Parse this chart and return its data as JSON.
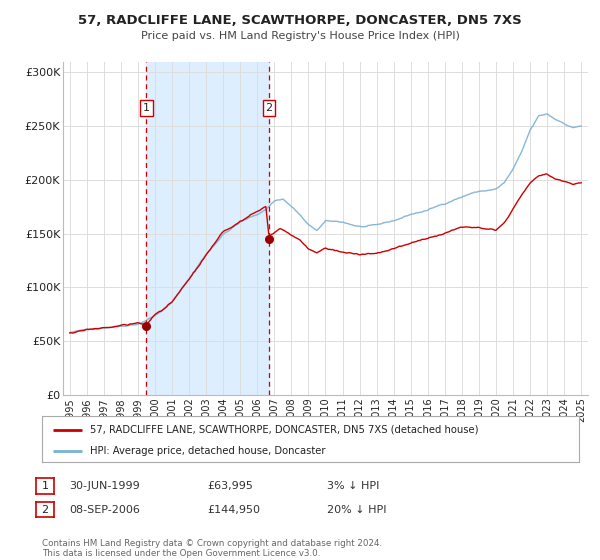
{
  "title": "57, RADCLIFFE LANE, SCAWTHORPE, DONCASTER, DN5 7XS",
  "subtitle": "Price paid vs. HM Land Registry's House Price Index (HPI)",
  "legend_line1": "57, RADCLIFFE LANE, SCAWTHORPE, DONCASTER, DN5 7XS (detached house)",
  "legend_line2": "HPI: Average price, detached house, Doncaster",
  "transaction1_date": "30-JUN-1999",
  "transaction1_price": "£63,995",
  "transaction1_hpi": "3% ↓ HPI",
  "transaction1_year": 1999.49,
  "transaction1_value": 63995,
  "transaction2_date": "08-SEP-2006",
  "transaction2_price": "£144,950",
  "transaction2_hpi": "20% ↓ HPI",
  "transaction2_year": 2006.68,
  "transaction2_value": 144950,
  "footer_line1": "Contains HM Land Registry data © Crown copyright and database right 2024.",
  "footer_line2": "This data is licensed under the Open Government Licence v3.0.",
  "price_line_color": "#cc0000",
  "hpi_line_color": "#7ab0d4",
  "shaded_region_color": "#ddeeff",
  "dot_color": "#990000",
  "vline_color": "#cc0000",
  "ylim_min": 0,
  "ylim_max": 310000,
  "yticks": [
    0,
    50000,
    100000,
    150000,
    200000,
    250000,
    300000
  ],
  "ytick_labels": [
    "£0",
    "£50K",
    "£100K",
    "£150K",
    "£200K",
    "£250K",
    "£300K"
  ],
  "xlim_min": 1994.6,
  "xlim_max": 2025.4,
  "xticks": [
    1995,
    1996,
    1997,
    1998,
    1999,
    2000,
    2001,
    2002,
    2003,
    2004,
    2005,
    2006,
    2007,
    2008,
    2009,
    2010,
    2011,
    2012,
    2013,
    2014,
    2015,
    2016,
    2017,
    2018,
    2019,
    2020,
    2021,
    2022,
    2023,
    2024,
    2025
  ],
  "background_color": "#ffffff",
  "plot_bg_color": "#ffffff",
  "grid_color": "#dddddd"
}
